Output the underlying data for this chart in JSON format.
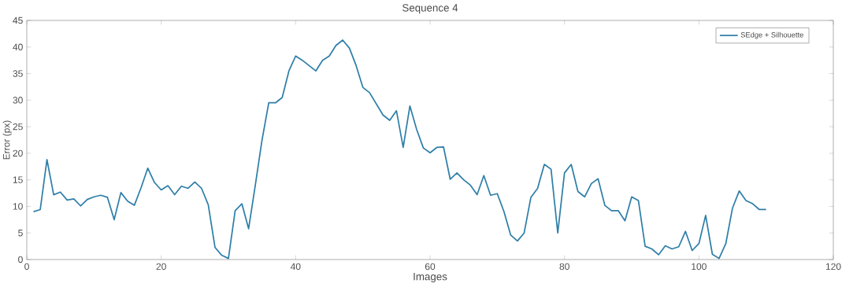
{
  "chart_data": {
    "type": "line",
    "title": "Sequence 4",
    "xlabel": "Images",
    "ylabel": "Error (px)",
    "x": [
      1,
      2,
      3,
      4,
      5,
      6,
      7,
      8,
      9,
      10,
      11,
      12,
      13,
      14,
      15,
      16,
      17,
      18,
      19,
      20,
      21,
      22,
      23,
      24,
      25,
      26,
      27,
      28,
      29,
      30,
      31,
      32,
      33,
      34,
      35,
      36,
      37,
      38,
      39,
      40,
      41,
      42,
      43,
      44,
      45,
      46,
      47,
      48,
      49,
      50,
      51,
      52,
      53,
      54,
      55,
      56,
      57,
      58,
      59,
      60,
      61,
      62,
      63,
      64,
      65,
      66,
      67,
      68,
      69,
      70,
      71,
      72,
      73,
      74,
      75,
      76,
      77,
      78,
      79,
      80,
      81,
      82,
      83,
      84,
      85,
      86,
      87,
      88,
      89,
      90,
      91,
      92,
      93,
      94,
      95,
      96,
      97,
      98,
      99,
      100,
      101,
      102,
      103,
      104,
      105,
      106,
      107,
      108,
      109,
      110
    ],
    "series": [
      {
        "name": "SEdge + Silhouette",
        "color": "#2f7fa8",
        "values": [
          9.0,
          9.4,
          18.8,
          12.2,
          12.7,
          11.2,
          11.4,
          10.1,
          11.3,
          11.8,
          12.1,
          11.7,
          7.5,
          12.6,
          11.0,
          10.2,
          13.5,
          17.2,
          14.5,
          13.1,
          13.9,
          12.2,
          13.8,
          13.4,
          14.6,
          13.4,
          10.3,
          2.3,
          0.8,
          0.2,
          9.2,
          10.5,
          5.8,
          14.0,
          22.5,
          29.5,
          29.5,
          30.5,
          35.5,
          38.3,
          37.5,
          36.5,
          35.5,
          37.5,
          38.3,
          40.3,
          41.3,
          39.8,
          36.5,
          32.4,
          31.4,
          29.3,
          27.2,
          26.2,
          28.0,
          21.1,
          28.9,
          24.5,
          21.0,
          20.1,
          21.1,
          21.2,
          15.1,
          16.3,
          15.0,
          14.0,
          12.2,
          15.8,
          12.1,
          12.4,
          9.0,
          4.6,
          3.5,
          5.0,
          11.7,
          13.4,
          17.9,
          17.0,
          5.0,
          16.3,
          17.9,
          12.8,
          11.8,
          14.3,
          15.2,
          10.2,
          9.2,
          9.2,
          7.3,
          11.8,
          11.1,
          2.5,
          2.0,
          0.9,
          2.6,
          2.0,
          2.4,
          5.3,
          1.7,
          3.0,
          8.3,
          1.0,
          0.2,
          3.0,
          9.7,
          12.9,
          11.1,
          10.5,
          9.4,
          9.4
        ]
      }
    ],
    "xlim": [
      0,
      120
    ],
    "xticks": [
      0,
      20,
      40,
      60,
      80,
      100,
      120
    ],
    "ylim": [
      0,
      45
    ],
    "yticks": [
      0,
      5,
      10,
      15,
      20,
      25,
      30,
      35,
      40,
      45
    ],
    "grid": false,
    "legend": "top right"
  }
}
